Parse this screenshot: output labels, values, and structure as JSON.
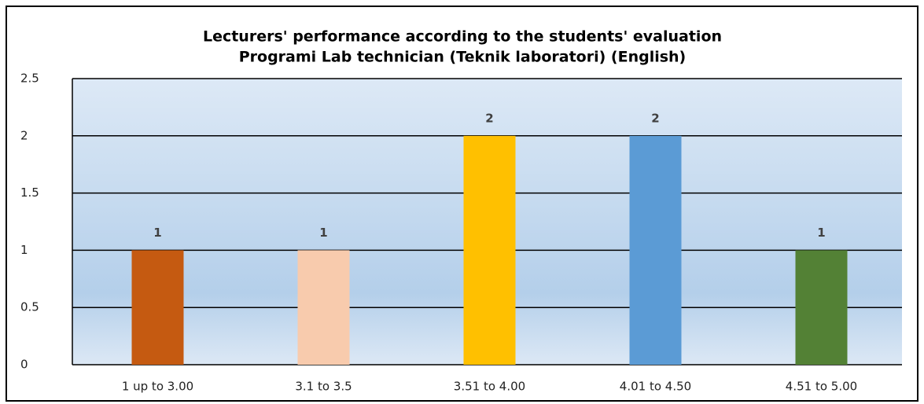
{
  "chart_data": {
    "type": "bar",
    "title": "Lecturers' performance according to the students' evaluation",
    "subtitle": "Programi Lab technician (Teknik laboratori) (English)",
    "categories": [
      "1 up to 3.00",
      "3.1 to 3.5",
      "3.51 to 4.00",
      "4.01 to 4.50",
      "4.51 to 5.00"
    ],
    "values": [
      1,
      1,
      2,
      2,
      1
    ],
    "colors": [
      "#c55a11",
      "#f8cbad",
      "#ffc000",
      "#5b9bd5",
      "#538135"
    ],
    "ylim": [
      0,
      2.5
    ],
    "yticks": [
      0,
      0.5,
      1,
      1.5,
      2,
      2.5
    ],
    "grid": true
  }
}
